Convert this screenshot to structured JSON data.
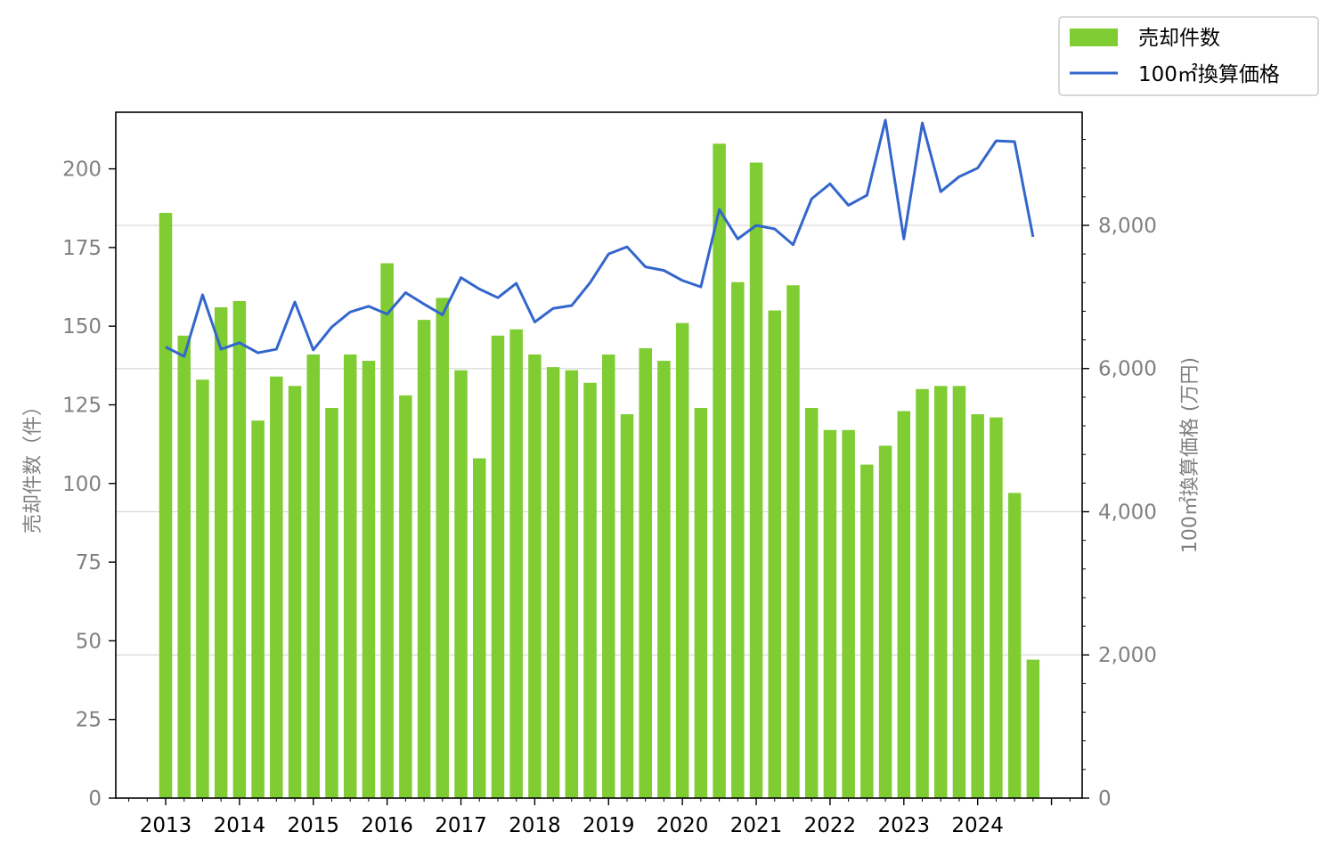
{
  "chart_data": {
    "type": "bar",
    "x_ticks": [
      "2013",
      "2014",
      "2015",
      "2016",
      "2017",
      "2018",
      "2019",
      "2020",
      "2021",
      "2022",
      "2023",
      "2024"
    ],
    "left_axis": {
      "label": "売却件数（件）",
      "ylim": [
        0,
        218
      ],
      "ticks": [
        0,
        25,
        50,
        75,
        100,
        125,
        150,
        175,
        200
      ],
      "tick_labels": [
        "0",
        "25",
        "50",
        "75",
        "100",
        "125",
        "150",
        "175",
        "200"
      ]
    },
    "right_axis": {
      "label": "100㎡換算価格 (万円)",
      "ylim": [
        0,
        9580
      ],
      "ticks": [
        0,
        2000,
        4000,
        6000,
        8000
      ],
      "tick_labels": [
        "0",
        "2,000",
        "4,000",
        "6,000",
        "8,000"
      ]
    },
    "grid": "horizontal (right axis)",
    "legend_position": "top-right",
    "series": [
      {
        "name": "売却件数",
        "type": "bar",
        "axis": "left",
        "color": "#7fcc33",
        "values": [
          186,
          147,
          133,
          156,
          158,
          120,
          134,
          131,
          141,
          124,
          141,
          139,
          170,
          128,
          152,
          159,
          136,
          108,
          147,
          149,
          141,
          137,
          136,
          132,
          141,
          122,
          143,
          139,
          151,
          124,
          208,
          164,
          202,
          155,
          163,
          124,
          117,
          117,
          106,
          112,
          123,
          130,
          131,
          131,
          122,
          121,
          97,
          44
        ]
      },
      {
        "name": "100㎡換算価格",
        "type": "line",
        "axis": "right",
        "color": "#3366cc",
        "values": [
          6300,
          6170,
          7030,
          6270,
          6360,
          6220,
          6270,
          6930,
          6260,
          6580,
          6790,
          6870,
          6760,
          7060,
          6900,
          6750,
          7270,
          7110,
          6990,
          7190,
          6650,
          6840,
          6880,
          7200,
          7600,
          7700,
          7420,
          7370,
          7230,
          7140,
          8220,
          7810,
          8000,
          7950,
          7730,
          8370,
          8580,
          8280,
          8420,
          9470,
          7810,
          9430,
          8470,
          8680,
          8800,
          9180,
          9170,
          7840
        ]
      }
    ]
  }
}
